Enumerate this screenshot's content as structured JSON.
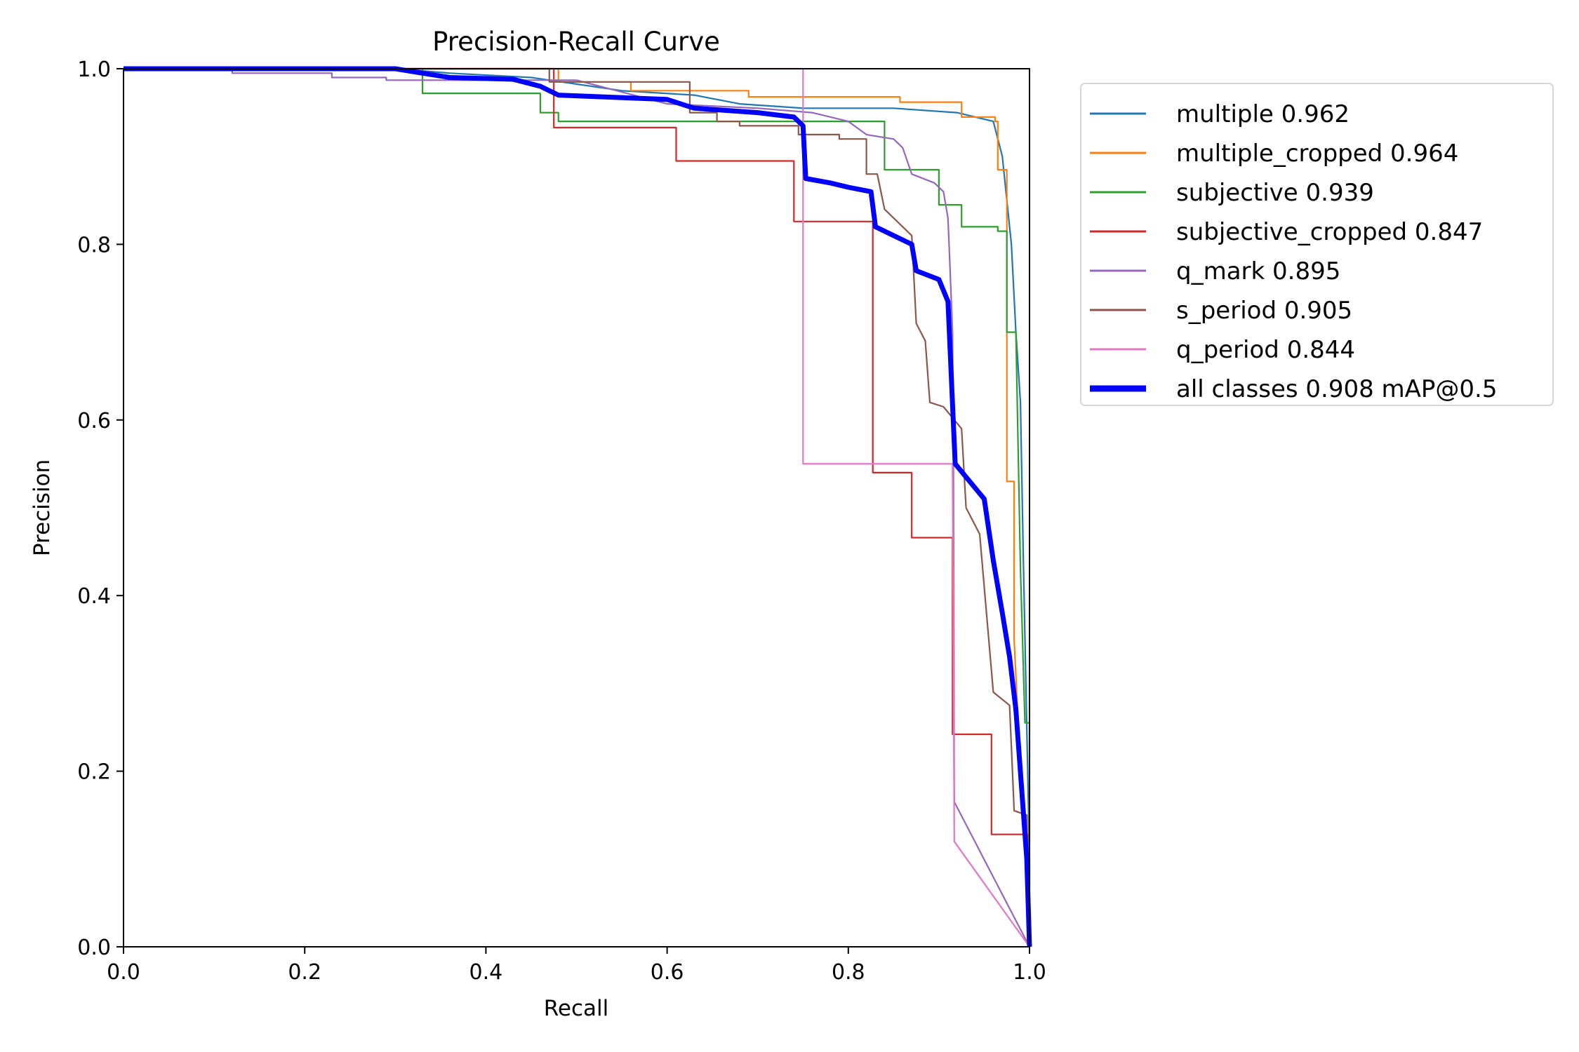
{
  "chart_data": {
    "type": "line",
    "title": "Precision-Recall Curve",
    "xlabel": "Recall",
    "ylabel": "Precision",
    "xlim": [
      0,
      1
    ],
    "ylim": [
      0,
      1
    ],
    "xticks": [
      "0.0",
      "0.2",
      "0.4",
      "0.6",
      "0.8",
      "1.0"
    ],
    "yticks": [
      "0.0",
      "0.2",
      "0.4",
      "0.6",
      "0.8",
      "1.0"
    ],
    "grid": false,
    "legend_position": "outside-upper-right",
    "series": [
      {
        "name": "multiple 0.962",
        "color": "#1f77b4",
        "width": 1,
        "points": [
          [
            0,
            1.0
          ],
          [
            0.3,
            1.0
          ],
          [
            0.36,
            0.995
          ],
          [
            0.45,
            0.99
          ],
          [
            0.55,
            0.975
          ],
          [
            0.63,
            0.97
          ],
          [
            0.68,
            0.96
          ],
          [
            0.75,
            0.955
          ],
          [
            0.85,
            0.955
          ],
          [
            0.92,
            0.95
          ],
          [
            0.96,
            0.94
          ],
          [
            0.97,
            0.9
          ],
          [
            0.975,
            0.85
          ],
          [
            0.98,
            0.8
          ],
          [
            0.985,
            0.7
          ],
          [
            0.99,
            0.62
          ],
          [
            0.993,
            0.45
          ],
          [
            0.997,
            0.25
          ],
          [
            1.0,
            0.1
          ],
          [
            1.0,
            0.0
          ]
        ]
      },
      {
        "name": "multiple_cropped 0.964",
        "color": "#ff7f0e",
        "width": 1,
        "points": [
          [
            0,
            1.0
          ],
          [
            0.48,
            1.0
          ],
          [
            0.48,
            0.985
          ],
          [
            0.56,
            0.985
          ],
          [
            0.56,
            0.975
          ],
          [
            0.69,
            0.975
          ],
          [
            0.69,
            0.968
          ],
          [
            0.857,
            0.968
          ],
          [
            0.857,
            0.962
          ],
          [
            0.925,
            0.962
          ],
          [
            0.925,
            0.945
          ],
          [
            0.962,
            0.945
          ],
          [
            0.962,
            0.94
          ],
          [
            0.965,
            0.94
          ],
          [
            0.965,
            0.885
          ],
          [
            0.975,
            0.885
          ],
          [
            0.975,
            0.53
          ],
          [
            0.983,
            0.53
          ],
          [
            0.983,
            0.35
          ],
          [
            0.99,
            0.2
          ],
          [
            1.0,
            0.05
          ],
          [
            1.0,
            0.0
          ]
        ]
      },
      {
        "name": "subjective 0.939",
        "color": "#2ca02c",
        "width": 1,
        "points": [
          [
            0,
            1.0
          ],
          [
            0.33,
            1.0
          ],
          [
            0.33,
            0.972
          ],
          [
            0.46,
            0.972
          ],
          [
            0.46,
            0.95
          ],
          [
            0.48,
            0.95
          ],
          [
            0.48,
            0.94
          ],
          [
            0.84,
            0.94
          ],
          [
            0.84,
            0.885
          ],
          [
            0.9,
            0.885
          ],
          [
            0.9,
            0.845
          ],
          [
            0.925,
            0.845
          ],
          [
            0.925,
            0.82
          ],
          [
            0.965,
            0.82
          ],
          [
            0.965,
            0.815
          ],
          [
            0.975,
            0.815
          ],
          [
            0.975,
            0.7
          ],
          [
            0.985,
            0.7
          ],
          [
            0.99,
            0.43
          ],
          [
            0.995,
            0.255
          ],
          [
            1.0,
            0.255
          ],
          [
            1.0,
            0.1
          ],
          [
            1.0,
            0.0
          ]
        ]
      },
      {
        "name": "subjective_cropped 0.847",
        "color": "#d62728",
        "width": 1,
        "points": [
          [
            0,
            1.0
          ],
          [
            0.475,
            1.0
          ],
          [
            0.475,
            0.933
          ],
          [
            0.61,
            0.933
          ],
          [
            0.61,
            0.895
          ],
          [
            0.74,
            0.895
          ],
          [
            0.74,
            0.826
          ],
          [
            0.827,
            0.826
          ],
          [
            0.827,
            0.54
          ],
          [
            0.87,
            0.54
          ],
          [
            0.87,
            0.466
          ],
          [
            0.915,
            0.466
          ],
          [
            0.915,
            0.242
          ],
          [
            0.958,
            0.242
          ],
          [
            0.958,
            0.128
          ],
          [
            0.998,
            0.128
          ],
          [
            1.0,
            0.0
          ]
        ]
      },
      {
        "name": "q_mark 0.895",
        "color": "#9467bd",
        "width": 1,
        "points": [
          [
            0,
            1.0
          ],
          [
            0.12,
            1.0
          ],
          [
            0.12,
            0.995
          ],
          [
            0.23,
            0.995
          ],
          [
            0.23,
            0.99
          ],
          [
            0.29,
            0.99
          ],
          [
            0.29,
            0.987
          ],
          [
            0.5,
            0.987
          ],
          [
            0.6,
            0.96
          ],
          [
            0.7,
            0.955
          ],
          [
            0.76,
            0.95
          ],
          [
            0.8,
            0.94
          ],
          [
            0.82,
            0.925
          ],
          [
            0.85,
            0.92
          ],
          [
            0.86,
            0.91
          ],
          [
            0.87,
            0.88
          ],
          [
            0.895,
            0.87
          ],
          [
            0.905,
            0.86
          ],
          [
            0.91,
            0.83
          ],
          [
            0.912,
            0.78
          ],
          [
            0.915,
            0.7
          ],
          [
            0.916,
            0.55
          ],
          [
            0.917,
            0.165
          ],
          [
            1.0,
            0.0
          ]
        ]
      },
      {
        "name": "s_period 0.905",
        "color": "#8c564b",
        "width": 1,
        "points": [
          [
            0,
            1.0
          ],
          [
            0.47,
            1.0
          ],
          [
            0.47,
            0.985
          ],
          [
            0.625,
            0.985
          ],
          [
            0.625,
            0.95
          ],
          [
            0.655,
            0.95
          ],
          [
            0.655,
            0.94
          ],
          [
            0.68,
            0.94
          ],
          [
            0.68,
            0.935
          ],
          [
            0.745,
            0.935
          ],
          [
            0.745,
            0.925
          ],
          [
            0.79,
            0.925
          ],
          [
            0.79,
            0.92
          ],
          [
            0.82,
            0.92
          ],
          [
            0.82,
            0.88
          ],
          [
            0.832,
            0.88
          ],
          [
            0.84,
            0.84
          ],
          [
            0.87,
            0.81
          ],
          [
            0.875,
            0.71
          ],
          [
            0.885,
            0.69
          ],
          [
            0.89,
            0.62
          ],
          [
            0.905,
            0.615
          ],
          [
            0.925,
            0.59
          ],
          [
            0.93,
            0.5
          ],
          [
            0.945,
            0.47
          ],
          [
            0.96,
            0.29
          ],
          [
            0.978,
            0.275
          ],
          [
            0.983,
            0.155
          ],
          [
            0.997,
            0.15
          ],
          [
            1.0,
            0.0
          ]
        ]
      },
      {
        "name": "q_period 0.844",
        "color": "#e377c2",
        "width": 1,
        "points": [
          [
            0,
            1.0
          ],
          [
            0.75,
            1.0
          ],
          [
            0.75,
            0.55
          ],
          [
            0.915,
            0.55
          ],
          [
            0.917,
            0.12
          ],
          [
            1.0,
            0.0
          ]
        ]
      },
      {
        "name": "all classes 0.908 mAP@0.5",
        "color": "#0000ff",
        "width": 3,
        "points": [
          [
            0,
            1.0
          ],
          [
            0.3,
            1.0
          ],
          [
            0.33,
            0.995
          ],
          [
            0.36,
            0.99
          ],
          [
            0.43,
            0.988
          ],
          [
            0.46,
            0.98
          ],
          [
            0.48,
            0.97
          ],
          [
            0.6,
            0.965
          ],
          [
            0.63,
            0.955
          ],
          [
            0.7,
            0.95
          ],
          [
            0.74,
            0.945
          ],
          [
            0.75,
            0.935
          ],
          [
            0.753,
            0.875
          ],
          [
            0.78,
            0.87
          ],
          [
            0.8,
            0.865
          ],
          [
            0.825,
            0.86
          ],
          [
            0.83,
            0.82
          ],
          [
            0.87,
            0.8
          ],
          [
            0.875,
            0.77
          ],
          [
            0.9,
            0.76
          ],
          [
            0.91,
            0.735
          ],
          [
            0.918,
            0.55
          ],
          [
            0.93,
            0.535
          ],
          [
            0.95,
            0.51
          ],
          [
            0.96,
            0.44
          ],
          [
            0.97,
            0.38
          ],
          [
            0.978,
            0.33
          ],
          [
            0.985,
            0.27
          ],
          [
            0.997,
            0.1
          ],
          [
            1.0,
            0.0
          ]
        ]
      }
    ]
  }
}
